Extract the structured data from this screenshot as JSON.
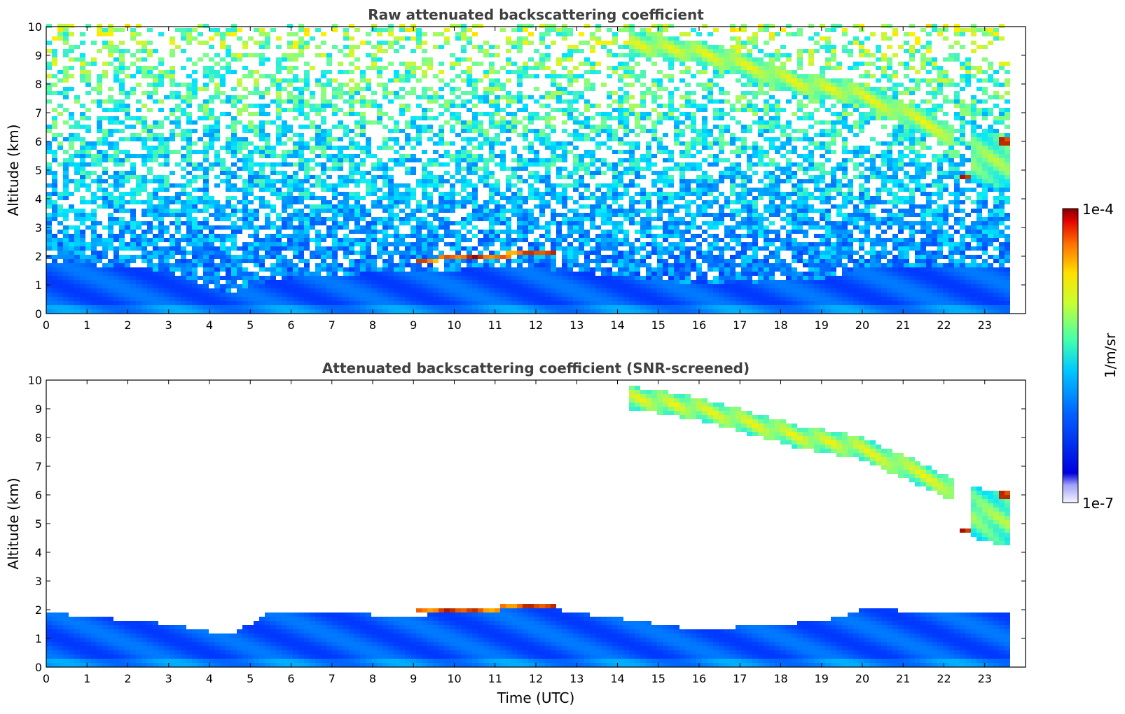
{
  "chart_data": [
    {
      "type": "heatmap",
      "title": "Raw attenuated backscattering coefficient",
      "xlabel": "",
      "ylabel": "Altitude (km)",
      "xlim": [
        0,
        24
      ],
      "ylim": [
        0,
        10
      ],
      "x_ticks": [
        "0",
        "1",
        "2",
        "3",
        "4",
        "5",
        "6",
        "7",
        "8",
        "9",
        "10",
        "11",
        "12",
        "13",
        "14",
        "15",
        "16",
        "17",
        "18",
        "19",
        "20",
        "21",
        "22",
        "23"
      ],
      "y_ticks": [
        "0",
        "1",
        "2",
        "3",
        "4",
        "5",
        "6",
        "7",
        "8",
        "9",
        "10"
      ],
      "grid": false,
      "noise": true,
      "features": [
        {
          "kind": "boundary-layer",
          "x": [
            0,
            3,
            4.5,
            5.5,
            9,
            12,
            16,
            19,
            20,
            23.75
          ],
          "top_km": [
            1.8,
            1.5,
            0.7,
            1.2,
            1.5,
            1.6,
            1.0,
            1.2,
            1.6,
            1.6
          ],
          "intensity": 0.28
        },
        {
          "kind": "cloud-layer",
          "x": [
            9.0,
            12.5
          ],
          "alt_km": [
            1.85,
            2.15
          ],
          "thickness_km": 0.15,
          "intensity": 0.95
        },
        {
          "kind": "cirrus",
          "x": [
            14.3,
            16.0,
            17.5,
            18.5,
            19.8,
            21.0,
            22.2
          ],
          "alt_km": [
            9.4,
            9.1,
            8.5,
            8.0,
            7.7,
            7.0,
            6.2
          ],
          "thickness_km": 0.8,
          "intensity": 0.7
        },
        {
          "kind": "cirrus",
          "x": [
            22.7,
            23.75
          ],
          "alt_km": [
            5.5,
            5.2
          ],
          "thickness_km": 1.8,
          "intensity": 0.65
        },
        {
          "kind": "cloud-layer",
          "x": [
            23.3,
            23.75
          ],
          "alt_km": [
            6.0,
            6.0
          ],
          "thickness_km": 0.2,
          "intensity": 1.0
        },
        {
          "kind": "cloud-layer",
          "x": [
            22.4,
            22.7
          ],
          "alt_km": [
            4.8,
            4.7
          ],
          "thickness_km": 0.2,
          "intensity": 1.0
        }
      ]
    },
    {
      "type": "heatmap",
      "title": "Attenuated backscattering coefficient (SNR-screened)",
      "xlabel": "Time (UTC)",
      "ylabel": "Altitude (km)",
      "xlim": [
        0,
        24
      ],
      "ylim": [
        0,
        10
      ],
      "x_ticks": [
        "0",
        "1",
        "2",
        "3",
        "4",
        "5",
        "6",
        "7",
        "8",
        "9",
        "10",
        "11",
        "12",
        "13",
        "14",
        "15",
        "16",
        "17",
        "18",
        "19",
        "20",
        "21",
        "22",
        "23"
      ],
      "y_ticks": [
        "0",
        "1",
        "2",
        "3",
        "4",
        "5",
        "6",
        "7",
        "8",
        "9",
        "10"
      ],
      "grid": false,
      "noise": false,
      "features": [
        {
          "kind": "boundary-layer",
          "x": [
            0,
            3,
            4.5,
            5.5,
            9,
            12,
            16,
            19,
            20,
            23.75
          ],
          "top_km": [
            1.9,
            1.5,
            1.1,
            1.9,
            1.8,
            2.1,
            1.3,
            1.6,
            2.0,
            1.9
          ],
          "intensity": 0.28
        },
        {
          "kind": "cloud-layer",
          "x": [
            9.0,
            12.5
          ],
          "alt_km": [
            1.9,
            2.15
          ],
          "thickness_km": 0.15,
          "intensity": 0.95
        },
        {
          "kind": "cirrus",
          "x": [
            14.3,
            16.0,
            17.5,
            18.5,
            19.8,
            21.0,
            22.2
          ],
          "alt_km": [
            9.4,
            9.0,
            8.4,
            8.0,
            7.7,
            7.0,
            6.2
          ],
          "thickness_km": 0.8,
          "intensity": 0.7
        },
        {
          "kind": "cirrus",
          "x": [
            22.7,
            23.75
          ],
          "alt_km": [
            5.4,
            5.0
          ],
          "thickness_km": 1.8,
          "intensity": 0.65
        },
        {
          "kind": "cloud-layer",
          "x": [
            23.3,
            23.75
          ],
          "alt_km": [
            6.0,
            6.0
          ],
          "thickness_km": 0.2,
          "intensity": 1.0
        },
        {
          "kind": "cloud-layer",
          "x": [
            22.4,
            22.7
          ],
          "alt_km": [
            4.8,
            4.7
          ],
          "thickness_km": 0.2,
          "intensity": 1.0
        }
      ]
    }
  ],
  "colorbar": {
    "label": "1/m/sr",
    "min_label": "1e-7",
    "max_label": "1e-4",
    "range": [
      1e-07,
      0.0001
    ],
    "scale": "log",
    "colormap": "jet"
  }
}
